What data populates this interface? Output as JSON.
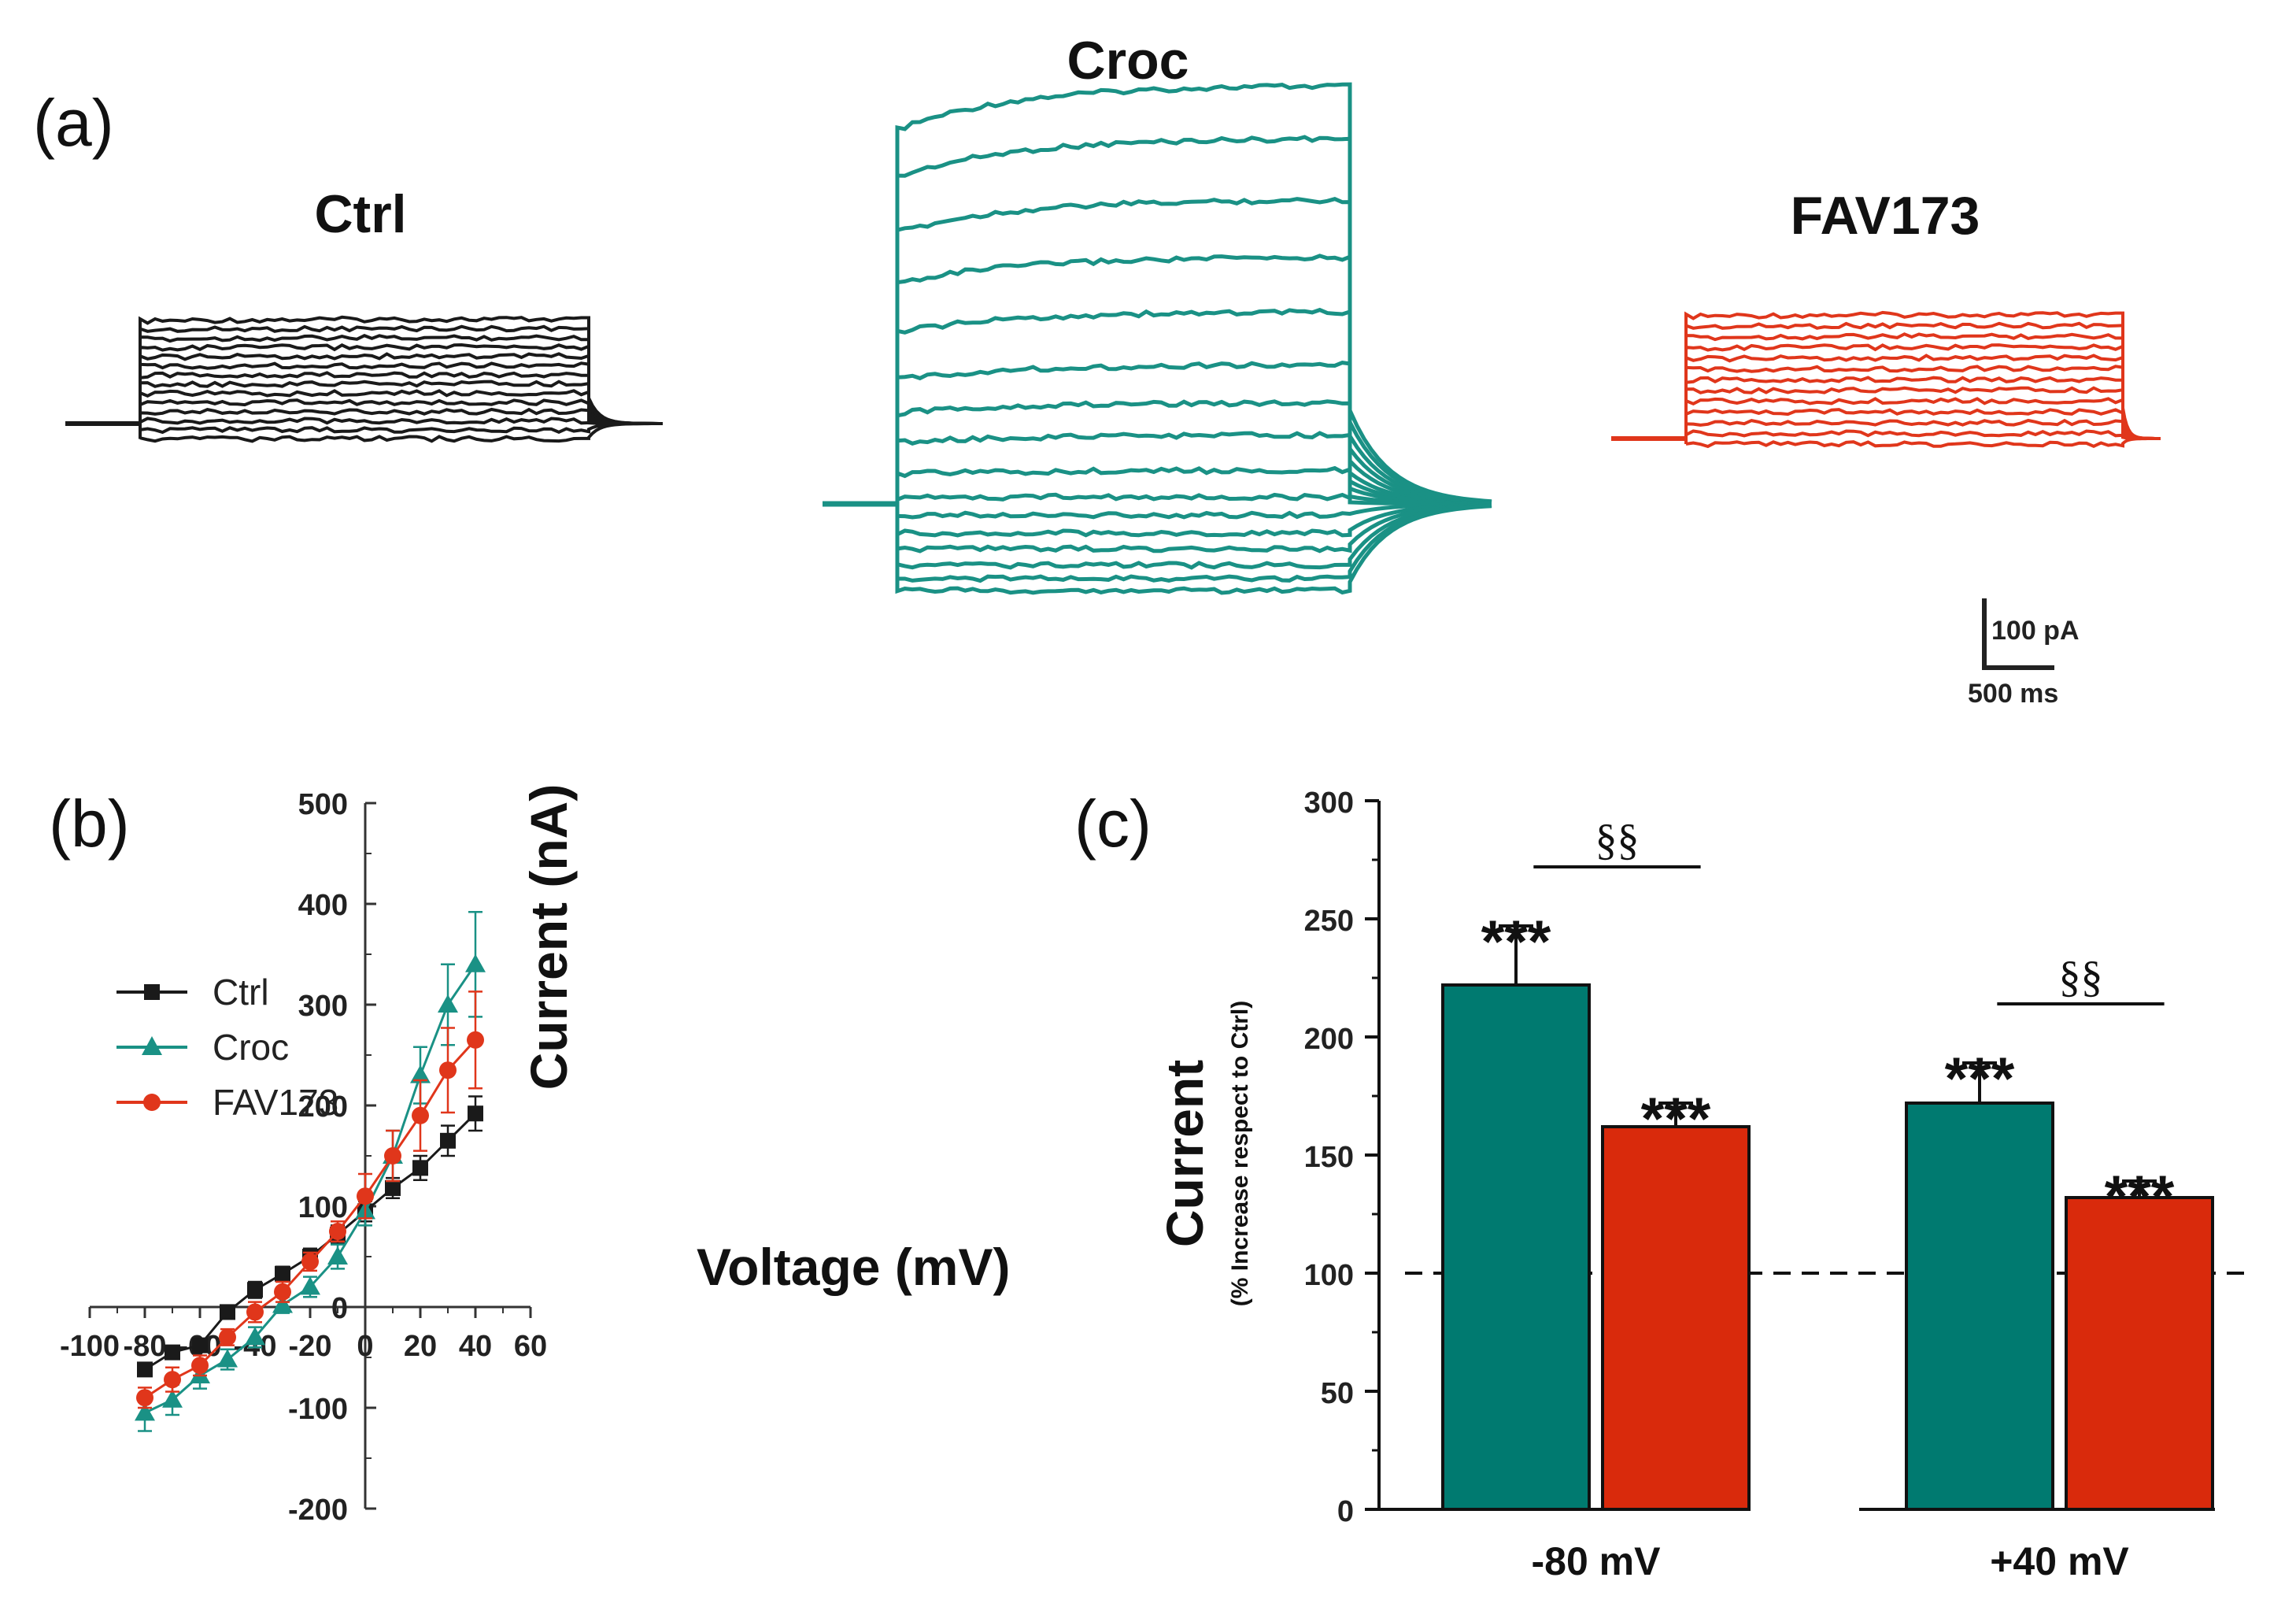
{
  "panels": {
    "a": {
      "label": "(a)",
      "traces": [
        {
          "name": "Ctrl",
          "color": "#1a1a1a",
          "title": "Ctrl"
        },
        {
          "name": "Croc",
          "color": "#1a9185",
          "title": "Croc"
        },
        {
          "name": "FAV173",
          "color": "#e0361b",
          "title": "FAV173"
        }
      ],
      "scale_bar": {
        "current": "100 pA",
        "time": "500 ms"
      }
    },
    "b": {
      "label": "(b)"
    },
    "c": {
      "label": "(c)"
    }
  },
  "chart_data": [
    {
      "type": "line",
      "panel": "b",
      "xlabel": "Voltage (mV)",
      "ylabel": "Current (nA)",
      "xlim": [
        -100,
        60
      ],
      "ylim": [
        -200,
        500
      ],
      "xticks": [
        -100,
        -80,
        -60,
        -40,
        -20,
        0,
        20,
        40,
        60
      ],
      "yticks": [
        -200,
        -100,
        0,
        100,
        200,
        300,
        400,
        500
      ],
      "legend": "left",
      "x": [
        -80,
        -70,
        -60,
        -50,
        -40,
        -30,
        -20,
        -10,
        0,
        10,
        20,
        30,
        40
      ],
      "series": [
        {
          "name": "Ctrl",
          "color": "#1a1a1a",
          "marker": "square",
          "values": [
            -62,
            -45,
            -38,
            -5,
            17,
            33,
            50,
            72,
            95,
            118,
            138,
            165,
            192
          ],
          "errors": [
            6,
            5,
            6,
            5,
            8,
            7,
            8,
            9,
            10,
            10,
            12,
            15,
            17
          ]
        },
        {
          "name": "Croc",
          "color": "#1a9185",
          "marker": "triangle",
          "values": [
            -105,
            -92,
            -68,
            -52,
            -30,
            2,
            20,
            50,
            95,
            150,
            230,
            300,
            340
          ],
          "errors": [
            18,
            15,
            13,
            10,
            10,
            8,
            10,
            12,
            14,
            25,
            28,
            40,
            52
          ]
        },
        {
          "name": "FAV173",
          "color": "#e0361b",
          "marker": "circle",
          "values": [
            -90,
            -72,
            -58,
            -30,
            -5,
            15,
            45,
            75,
            110,
            150,
            190,
            235,
            265
          ],
          "errors": [
            10,
            12,
            10,
            8,
            10,
            10,
            9,
            10,
            22,
            25,
            35,
            42,
            48
          ]
        }
      ]
    },
    {
      "type": "bar",
      "panel": "c",
      "ylabel": "Current",
      "ylabel_sub": "(% Increase respect to Ctrl)",
      "ylim": [
        0,
        300
      ],
      "yticks": [
        0,
        50,
        100,
        150,
        200,
        250,
        300
      ],
      "reference_line": 100,
      "categories": [
        "-80 mV",
        "+40 mV"
      ],
      "series": [
        {
          "name": "Croc",
          "color": "#007a70",
          "values": [
            222,
            172
          ],
          "errors": [
            25,
            17
          ]
        },
        {
          "name": "FAV173",
          "color": "#d92a0c",
          "values": [
            162,
            132
          ],
          "errors": [
            10,
            7
          ]
        }
      ],
      "annotations": {
        "bar_stars": [
          "***",
          "***",
          "***",
          "***"
        ],
        "bracket": [
          "§§",
          "§§"
        ]
      }
    }
  ]
}
